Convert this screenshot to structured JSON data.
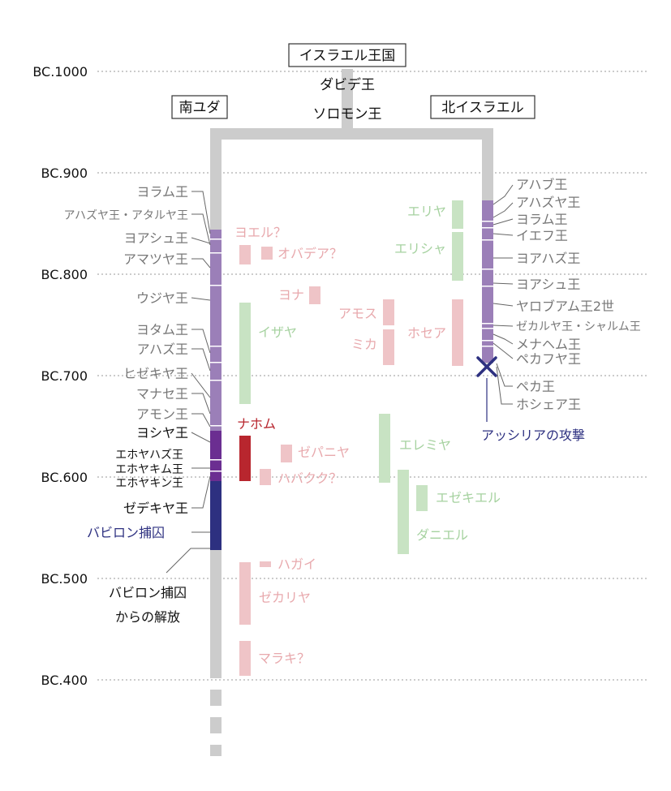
{
  "headers": {
    "israel": "イスラエル王国",
    "david": "ダビデ王",
    "solomon": "ソロモン王",
    "judah": "南ユダ",
    "north": "北イスラエル"
  },
  "years": [
    {
      "label": "BC.1000",
      "year": 1000
    },
    {
      "label": "BC.900",
      "year": 900
    },
    {
      "label": "BC.800",
      "year": 800
    },
    {
      "label": "BC.700",
      "year": 700
    },
    {
      "label": "BC.600",
      "year": 600
    },
    {
      "label": "BC.500",
      "year": 500
    },
    {
      "label": "BC.400",
      "year": 400
    }
  ],
  "judah_kings": [
    {
      "label": "ヨラム王",
      "year": 885,
      "style": "gray"
    },
    {
      "label": "アハズヤ王・アタルヤ王",
      "year": 866,
      "style": "gray"
    },
    {
      "label": "ヨアシュ王",
      "year": 843,
      "style": "gray"
    },
    {
      "label": "アマツヤ王",
      "year": 822,
      "style": "gray"
    },
    {
      "label": "ウジヤ王",
      "year": 776,
      "style": "gray"
    },
    {
      "label": "ヨタム王",
      "year": 745,
      "style": "gray"
    },
    {
      "label": "アハズ王",
      "year": 726,
      "style": "gray"
    },
    {
      "label": "ヒゼキヤ王",
      "year": 702,
      "style": "gray"
    },
    {
      "label": "マナセ王",
      "year": 682,
      "style": "gray"
    },
    {
      "label": "アモン王",
      "year": 661,
      "style": "gray"
    },
    {
      "label": "ヨシヤ王",
      "year": 643,
      "style": "bold"
    },
    {
      "label": "エホヤハズ王",
      "year": 622,
      "style": "small"
    },
    {
      "label": "エホヤキム王",
      "year": 609,
      "style": "small"
    },
    {
      "label": "エホヤキン王",
      "year": 596,
      "style": "small"
    },
    {
      "label": "ゼデキヤ王",
      "year": 568,
      "style": "bold"
    }
  ],
  "north_kings": [
    {
      "label": "アハブ王",
      "year": 871
    },
    {
      "label": "アハズヤ王",
      "year": 853
    },
    {
      "label": "ヨラム王",
      "year": 834
    },
    {
      "label": "イエフ王",
      "year": 815
    },
    {
      "label": "ヨアハズ王",
      "year": 790
    },
    {
      "label": "ヨアシュ王",
      "year": 764
    },
    {
      "label": "ヤロブアム王2世",
      "year": 742
    },
    {
      "label": "ゼカルヤ王・シャルム王",
      "year": 722
    },
    {
      "label": "メナヘム王",
      "year": 704
    },
    {
      "label": "ペカフヤ王",
      "year": 686
    },
    {
      "label": "ペカ王",
      "year": 660
    },
    {
      "label": "ホシェア王",
      "year": 642
    }
  ],
  "prophets": [
    {
      "label": "ヨエル？",
      "color": "pink"
    },
    {
      "label": "オバデア？",
      "color": "pink"
    },
    {
      "label": "ヨナ",
      "color": "pink"
    },
    {
      "label": "アモス",
      "color": "pink"
    },
    {
      "label": "ミカ",
      "color": "pink"
    },
    {
      "label": "ホセア",
      "color": "pink"
    },
    {
      "label": "ナホム",
      "color": "red"
    },
    {
      "label": "ゼパニヤ",
      "color": "pink"
    },
    {
      "label": "ハバクク？",
      "color": "pink"
    },
    {
      "label": "ハガイ",
      "color": "pink"
    },
    {
      "label": "ゼカリヤ",
      "color": "pink"
    },
    {
      "label": "マラキ？",
      "color": "pink"
    },
    {
      "label": "エリヤ",
      "color": "green"
    },
    {
      "label": "エリシャ",
      "color": "green"
    },
    {
      "label": "イザヤ",
      "color": "green"
    },
    {
      "label": "エレミヤ",
      "color": "green"
    },
    {
      "label": "エゼキエル",
      "color": "green"
    },
    {
      "label": "ダニエル",
      "color": "green"
    }
  ],
  "events": {
    "babylon": "バビロン捕囚",
    "release1": "バビロン捕囚",
    "release2": "からの解放",
    "assyria": "アッシリアの攻撃"
  },
  "colors": {
    "gray": "#cccccc",
    "purple": "#9b7fb8",
    "darkpurple": "#6b2e91",
    "navy": "#2d3080",
    "pink": "#e8a9ad",
    "green": "#a6d2a0",
    "red": "#b8262e"
  }
}
